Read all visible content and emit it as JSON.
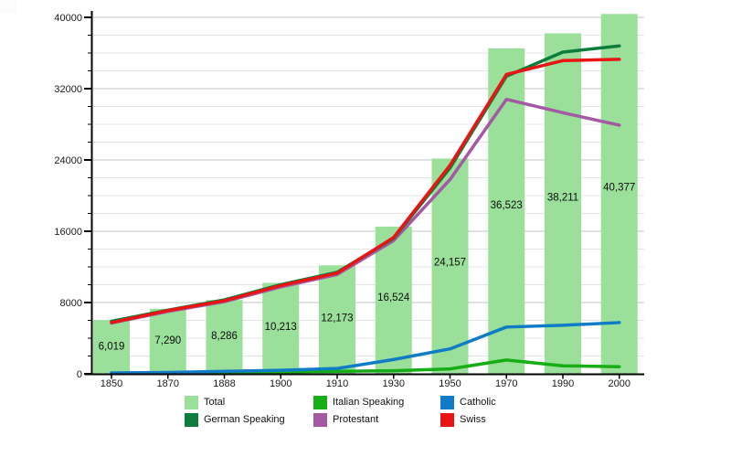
{
  "chart_data": {
    "type": "bar+line",
    "title": "",
    "categories": [
      "1850",
      "1870",
      "1888",
      "1900",
      "1910",
      "1930",
      "1950",
      "1970",
      "1990",
      "2000"
    ],
    "bars": {
      "name": "Total",
      "color": "#9adf9a",
      "values": [
        6019,
        7290,
        8286,
        10213,
        12173,
        16524,
        24157,
        36523,
        38211,
        40377
      ],
      "labels": [
        "6,019",
        "7,290",
        "8,286",
        "10,213",
        "12,173",
        "16,524",
        "24,157",
        "36,523",
        "38,211",
        "40,377"
      ]
    },
    "line_series": [
      {
        "name": "Protestant",
        "color": "#a35aa3",
        "values": [
          5700,
          7000,
          8100,
          9750,
          11150,
          14950,
          21800,
          30800,
          29300,
          27900
        ]
      },
      {
        "name": "German Speaking",
        "color": "#0e7d3c",
        "values": [
          5900,
          7150,
          8300,
          10000,
          11400,
          15200,
          23100,
          33400,
          36100,
          36800
        ]
      },
      {
        "name": "Swiss",
        "color": "#e91515",
        "values": [
          5750,
          7100,
          8200,
          9900,
          11300,
          15300,
          23400,
          33600,
          35150,
          35300
        ]
      },
      {
        "name": "Italian Speaking",
        "color": "#16ad16",
        "values": [
          30,
          60,
          120,
          200,
          280,
          350,
          550,
          1550,
          900,
          800
        ]
      },
      {
        "name": "Catholic",
        "color": "#107cc6",
        "values": [
          100,
          160,
          280,
          400,
          600,
          1600,
          2800,
          5250,
          5450,
          5750
        ]
      }
    ],
    "y_ticks": [
      {
        "value": 0,
        "label": "0"
      },
      {
        "value": 8000,
        "label": "8000"
      },
      {
        "value": 16000,
        "label": "16000"
      },
      {
        "value": 24000,
        "label": "24000"
      },
      {
        "value": 32000,
        "label": "32000"
      },
      {
        "value": 40000,
        "label": "40000"
      }
    ],
    "ylim": [
      0,
      40000
    ],
    "y_minor_step": 2000,
    "y_major_step": 8000,
    "grid": true,
    "legend_position": "bottom",
    "legend": [
      {
        "label": "Total",
        "color": "#9adf9a"
      },
      {
        "label": "German Speaking",
        "color": "#0e7d3c"
      },
      {
        "label": "Italian Speaking",
        "color": "#16ad16"
      },
      {
        "label": "Protestant",
        "color": "#a35aa3"
      },
      {
        "label": "Catholic",
        "color": "#107cc6"
      },
      {
        "label": "Swiss",
        "color": "#e91515"
      }
    ]
  }
}
